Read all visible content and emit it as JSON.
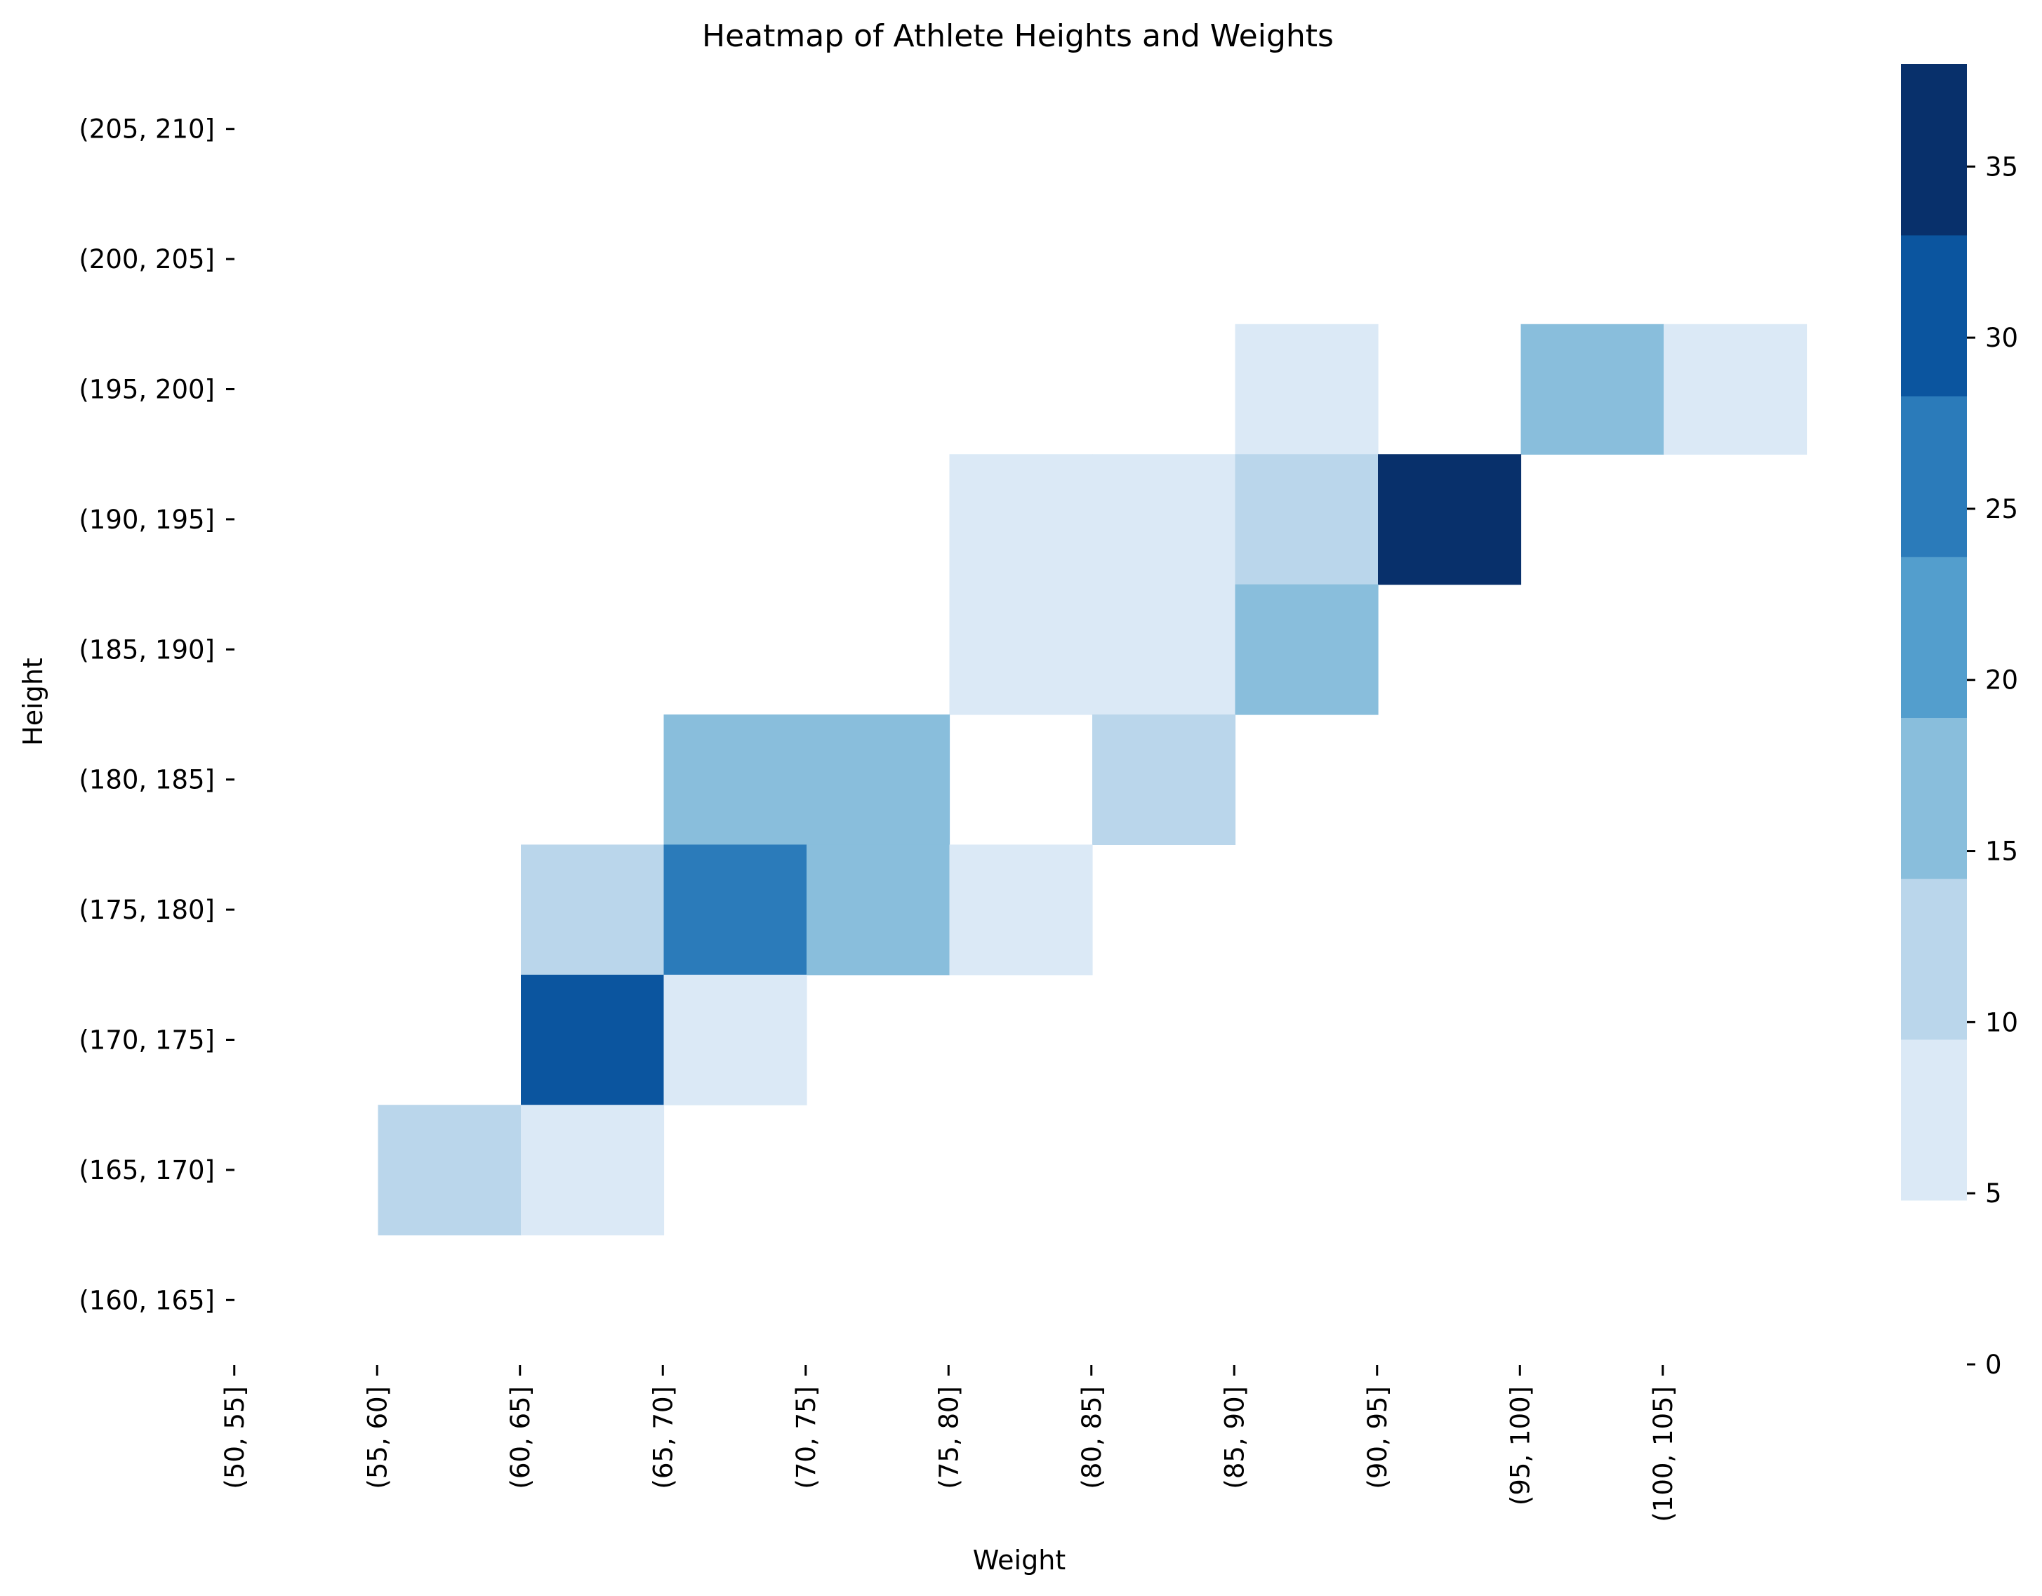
{
  "chart_data": {
    "type": "heatmap",
    "title": "Heatmap of Athlete Heights and Weights",
    "xlabel": "Weight",
    "ylabel": "Height",
    "x_categories": [
      "(50, 55]",
      "(55, 60]",
      "(60, 65]",
      "(65, 70]",
      "(70, 75]",
      "(75, 80]",
      "(80, 85]",
      "(85, 90]",
      "(90, 95]",
      "(95, 100]",
      "(100, 105]"
    ],
    "y_categories_top_to_bottom": [
      "(205, 210]",
      "(200, 205]",
      "(195, 200]",
      "(190, 195]",
      "(185, 190]",
      "(180, 185]",
      "(175, 180]",
      "(170, 175]",
      "(165, 170]",
      "(160, 165]"
    ],
    "values_top_to_bottom": [
      [
        null,
        null,
        null,
        null,
        null,
        null,
        null,
        null,
        null,
        null,
        null
      ],
      [
        null,
        null,
        null,
        null,
        null,
        null,
        null,
        null,
        null,
        null,
        null
      ],
      [
        null,
        null,
        null,
        null,
        null,
        null,
        null,
        5,
        null,
        15,
        5
      ],
      [
        null,
        null,
        null,
        null,
        null,
        5,
        5,
        10,
        35,
        null,
        null
      ],
      [
        null,
        null,
        null,
        null,
        null,
        5,
        5,
        15,
        null,
        null,
        null
      ],
      [
        null,
        null,
        null,
        15,
        15,
        null,
        10,
        null,
        null,
        null,
        null
      ],
      [
        null,
        null,
        10,
        25,
        15,
        5,
        null,
        null,
        null,
        null,
        null
      ],
      [
        null,
        null,
        30,
        5,
        null,
        null,
        null,
        null,
        null,
        null,
        null
      ],
      [
        null,
        10,
        5,
        null,
        null,
        null,
        null,
        null,
        null,
        null,
        null
      ],
      [
        null,
        null,
        null,
        null,
        null,
        null,
        null,
        null,
        null,
        null,
        null
      ]
    ],
    "colorbar": {
      "range": [
        0,
        38
      ],
      "ticks": [
        "0",
        "5",
        "10",
        "15",
        "20",
        "25",
        "30",
        "35"
      ],
      "levels": [
        {
          "from": 4.8,
          "to": 9.5,
          "color": "#dbe9f6"
        },
        {
          "from": 9.5,
          "to": 14.2,
          "color": "#bad6eb"
        },
        {
          "from": 14.2,
          "to": 18.9,
          "color": "#89bedc"
        },
        {
          "from": 18.9,
          "to": 23.6,
          "color": "#539ecd"
        },
        {
          "from": 23.6,
          "to": 28.3,
          "color": "#2b7bba"
        },
        {
          "from": 28.3,
          "to": 33.0,
          "color": "#0b559f"
        },
        {
          "from": 33.0,
          "to": 38.0,
          "color": "#08306b"
        }
      ]
    },
    "grid": false,
    "legend": "colorbar-right"
  }
}
